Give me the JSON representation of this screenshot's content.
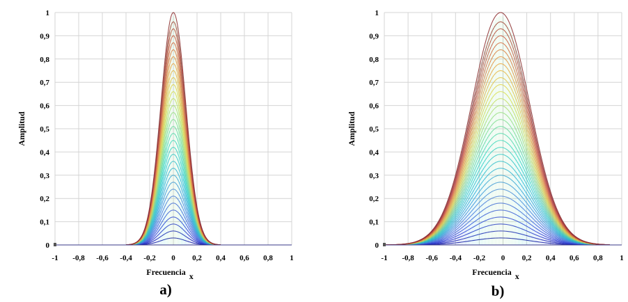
{
  "figure": {
    "panels": [
      {
        "tag": "a)",
        "xlabel": "Frecuencia",
        "xlabel_sub": "x",
        "ylabel": "Amplitud"
      },
      {
        "tag": "b)",
        "xlabel": "Frecuencia",
        "xlabel_sub": "x",
        "ylabel": "Amplitud"
      }
    ]
  },
  "chart_data": [
    {
      "type": "line",
      "panel": "a)",
      "xlabel": "Frecuencia x",
      "ylabel": "Amplitud",
      "xlim": [
        -1,
        1
      ],
      "ylim": [
        0,
        1
      ],
      "x_ticks": [
        "-1",
        "-0,8",
        "-0,6",
        "-0,4",
        "-0,2",
        "0",
        "0,2",
        "0,4",
        "0,6",
        "0,8",
        "1"
      ],
      "y_ticks": [
        "0",
        "0,1",
        "0,2",
        "0,3",
        "0,4",
        "0,5",
        "0,6",
        "0,7",
        "0,8",
        "0,9",
        "1"
      ],
      "grid": true,
      "colormap": [
        "#00008b",
        "#2b3bd6",
        "#4f7fe0",
        "#2fb5d8",
        "#38d9c4",
        "#8fe08a",
        "#e8e04a",
        "#f5a43c",
        "#d9533a",
        "#8b2a2a"
      ],
      "curve_shape": "gaussian",
      "center": 0,
      "sigma": 0.105,
      "support": [
        -0.4,
        0.4
      ],
      "peak_amplitudes": [
        0.0,
        0.03,
        0.06,
        0.09,
        0.12,
        0.15,
        0.18,
        0.21,
        0.24,
        0.27,
        0.3,
        0.33,
        0.36,
        0.39,
        0.42,
        0.45,
        0.48,
        0.51,
        0.54,
        0.57,
        0.6,
        0.63,
        0.66,
        0.69,
        0.72,
        0.75,
        0.78,
        0.81,
        0.84,
        0.87,
        0.9,
        0.93,
        0.96,
        1.0
      ]
    },
    {
      "type": "line",
      "panel": "b)",
      "xlabel": "Frecuencia x",
      "ylabel": "Amplitud",
      "xlim": [
        -1,
        1
      ],
      "ylim": [
        0,
        1
      ],
      "x_ticks": [
        "-1",
        "-0,8",
        "-0,6",
        "-0,4",
        "-0,2",
        "0",
        "0,2",
        "0,4",
        "0,6",
        "0,8",
        "1"
      ],
      "y_ticks": [
        "0",
        "0,1",
        "0,2",
        "0,3",
        "0,4",
        "0,5",
        "0,6",
        "0,7",
        "0,8",
        "0,9",
        "1"
      ],
      "grid": true,
      "colormap": [
        "#00008b",
        "#2b3bd6",
        "#4f7fe0",
        "#2fb5d8",
        "#38d9c4",
        "#8fe08a",
        "#e8e04a",
        "#f5a43c",
        "#d9533a",
        "#8b2a2a"
      ],
      "curve_shape": "gaussian",
      "center": -0.02,
      "sigma": 0.245,
      "support": [
        -1,
        0.9
      ],
      "peak_amplitudes": [
        0.0,
        0.03,
        0.06,
        0.09,
        0.12,
        0.15,
        0.18,
        0.21,
        0.24,
        0.27,
        0.3,
        0.33,
        0.36,
        0.39,
        0.42,
        0.45,
        0.48,
        0.51,
        0.54,
        0.57,
        0.6,
        0.63,
        0.66,
        0.69,
        0.72,
        0.75,
        0.78,
        0.81,
        0.84,
        0.87,
        0.9,
        0.93,
        0.96,
        1.0
      ]
    }
  ]
}
